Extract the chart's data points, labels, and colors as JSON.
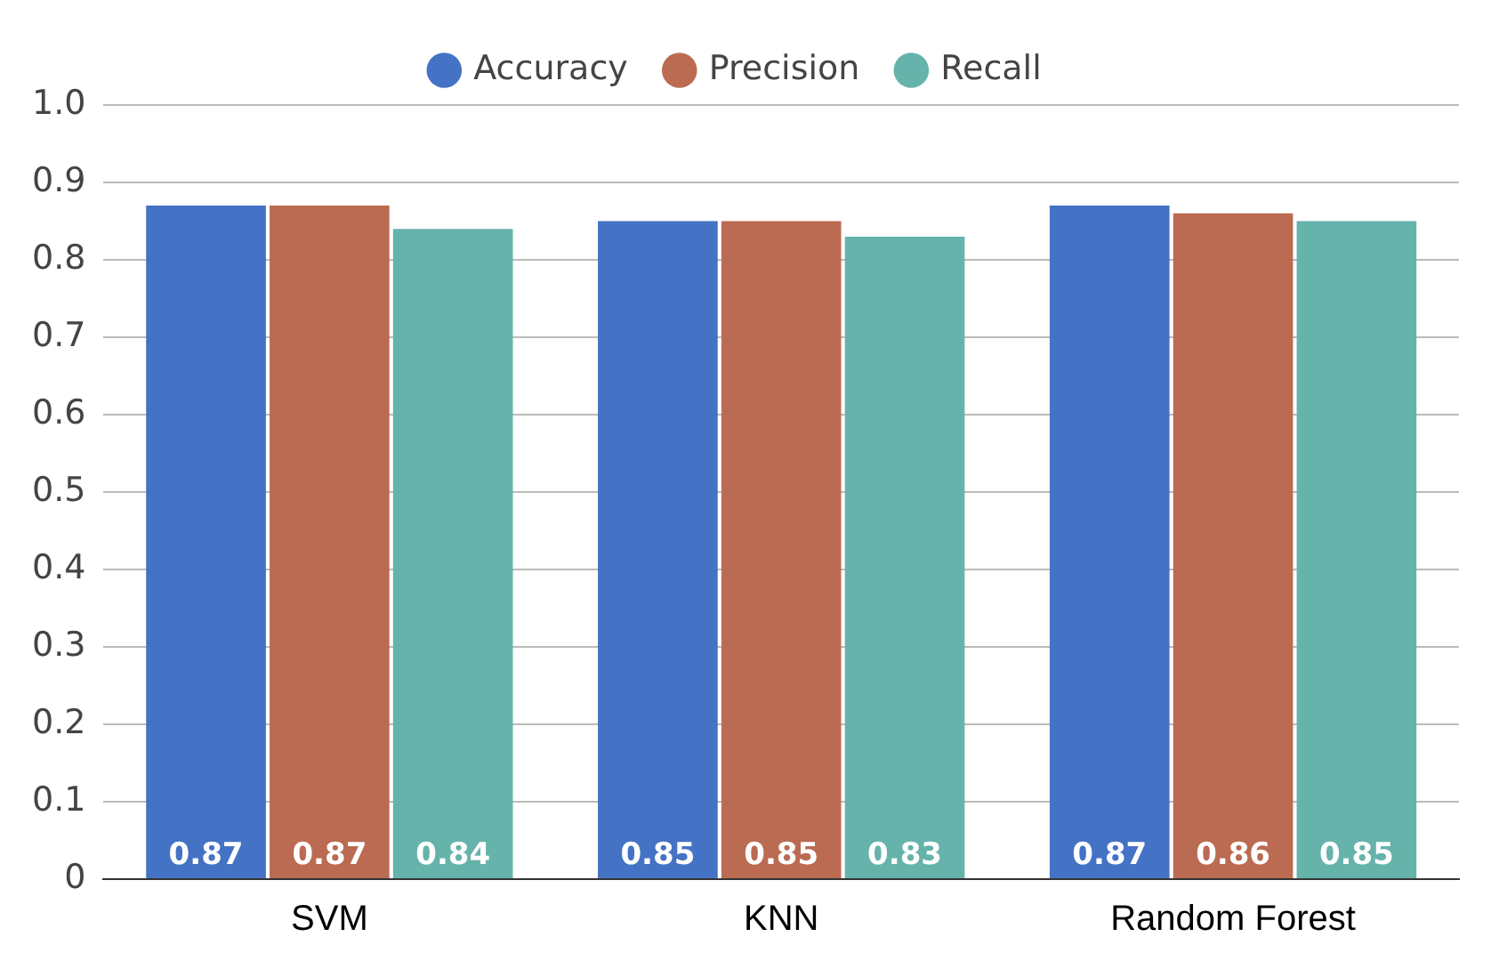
{
  "chart_data": {
    "type": "bar",
    "categories": [
      "SVM",
      "KNN",
      "Random Forest"
    ],
    "series": [
      {
        "name": "Accuracy",
        "color": "#4472c4",
        "values": [
          0.87,
          0.85,
          0.87
        ]
      },
      {
        "name": "Precision",
        "color": "#bb6b52",
        "values": [
          0.87,
          0.85,
          0.86
        ]
      },
      {
        "name": "Recall",
        "color": "#66b3ab",
        "values": [
          0.84,
          0.83,
          0.85
        ]
      }
    ],
    "ylim": [
      0,
      1
    ],
    "yticks": [
      0,
      0.1,
      0.2,
      0.3,
      0.4,
      0.5,
      0.6,
      0.7,
      0.8,
      0.9,
      {
        "value": 1,
        "label": "1.0"
      }
    ],
    "grid": "y",
    "legend": "top",
    "data_labels": true
  }
}
